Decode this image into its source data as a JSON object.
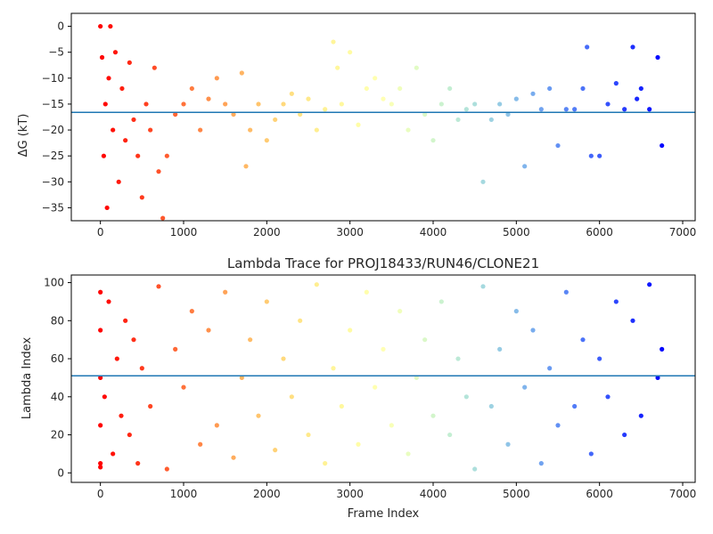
{
  "chart_data": [
    {
      "type": "scatter",
      "title": "",
      "xlabel": "",
      "ylabel": "ΔG (kT)",
      "xlim": [
        -350,
        7150
      ],
      "ylim": [
        -37.5,
        2.5
      ],
      "xticks": [
        "0",
        "1000",
        "2000",
        "3000",
        "4000",
        "5000",
        "6000",
        "7000"
      ],
      "yticks": [
        "0",
        "−5",
        "−10",
        "−15",
        "−20",
        "−25",
        "−30",
        "−35"
      ],
      "grid": false,
      "colormap": "rainbow",
      "hline": -16.6,
      "hline_color": "#1f77b4",
      "series": [
        {
          "x": [
            0,
            20,
            40,
            60,
            80,
            100,
            120,
            150,
            180,
            220,
            260,
            300,
            350,
            400,
            450,
            500,
            550,
            600,
            650,
            700,
            750,
            800,
            900,
            1000,
            1100,
            1200,
            1300,
            1400,
            1500,
            1600,
            1700,
            1750,
            1800,
            1900,
            2000,
            2100,
            2200,
            2300,
            2400,
            2500,
            2600,
            2700,
            2800,
            2850,
            2900,
            3000,
            3100,
            3200,
            3300,
            3400,
            3500,
            3600,
            3700,
            3800,
            3900,
            4000,
            4100,
            4200,
            4300,
            4400,
            4500,
            4600,
            4700,
            4800,
            4900,
            5000,
            5100,
            5200,
            5300,
            5400,
            5500,
            5600,
            5700,
            5800,
            5850,
            5900,
            6000,
            6100,
            6200,
            6300,
            6400,
            6450,
            6500,
            6600,
            6700,
            6750
          ],
          "y": [
            0,
            -6,
            -25,
            -15,
            -35,
            -10,
            0,
            -20,
            -5,
            -30,
            -12,
            -22,
            -7,
            -18,
            -25,
            -33,
            -15,
            -20,
            -8,
            -28,
            -37,
            -25,
            -17,
            -15,
            -12,
            -20,
            -14,
            -10,
            -15,
            -17,
            -9,
            -27,
            -20,
            -15,
            -22,
            -18,
            -15,
            -13,
            -17,
            -14,
            -20,
            -16,
            -3,
            -8,
            -15,
            -5,
            -19,
            -12,
            -10,
            -14,
            -15,
            -12,
            -20,
            -8,
            -17,
            -22,
            -15,
            -12,
            -18,
            -16,
            -15,
            -30,
            -18,
            -15,
            -17,
            -14,
            -27,
            -13,
            -16,
            -12,
            -23,
            -16,
            -16,
            -12,
            -4,
            -25,
            -25,
            -15,
            -11,
            -16,
            -4,
            -14,
            -12,
            -16,
            -6,
            -23
          ]
        }
      ]
    },
    {
      "type": "scatter",
      "title": "Lambda Trace for PROJ18433/RUN46/CLONE21",
      "xlabel": "Frame Index",
      "ylabel": "Lambda Index",
      "xlim": [
        -350,
        7150
      ],
      "ylim": [
        -5,
        104
      ],
      "xticks": [
        "0",
        "1000",
        "2000",
        "3000",
        "4000",
        "5000",
        "6000",
        "7000"
      ],
      "yticks": [
        "0",
        "20",
        "40",
        "60",
        "80",
        "100"
      ],
      "grid": false,
      "colormap": "rainbow",
      "hline": 51,
      "hline_color": "#1f77b4",
      "series": [
        {
          "x": [
            0,
            0,
            0,
            0,
            0,
            0,
            50,
            100,
            150,
            200,
            250,
            300,
            350,
            400,
            450,
            500,
            600,
            700,
            800,
            900,
            1000,
            1100,
            1200,
            1300,
            1400,
            1500,
            1600,
            1700,
            1800,
            1900,
            2000,
            2100,
            2200,
            2300,
            2400,
            2500,
            2600,
            2700,
            2800,
            2900,
            3000,
            3100,
            3200,
            3300,
            3400,
            3500,
            3600,
            3700,
            3800,
            3900,
            4000,
            4100,
            4200,
            4300,
            4400,
            4500,
            4600,
            4700,
            4800,
            4900,
            5000,
            5100,
            5200,
            5300,
            5400,
            5500,
            5600,
            5700,
            5800,
            5900,
            6000,
            6100,
            6200,
            6300,
            6400,
            6500,
            6600,
            6700,
            6750
          ],
          "y": [
            5,
            25,
            50,
            75,
            95,
            3,
            40,
            90,
            10,
            60,
            30,
            80,
            20,
            70,
            5,
            55,
            35,
            98,
            2,
            65,
            45,
            85,
            15,
            75,
            25,
            95,
            8,
            50,
            70,
            30,
            90,
            12,
            60,
            40,
            80,
            20,
            99,
            5,
            55,
            35,
            75,
            15,
            95,
            45,
            65,
            25,
            85,
            10,
            50,
            70,
            30,
            90,
            20,
            60,
            40,
            2,
            98,
            35,
            65,
            15,
            85,
            45,
            75,
            5,
            55,
            25,
            95,
            35,
            70,
            10,
            60,
            40,
            90,
            20,
            80,
            30,
            99,
            50,
            65
          ]
        }
      ]
    }
  ]
}
